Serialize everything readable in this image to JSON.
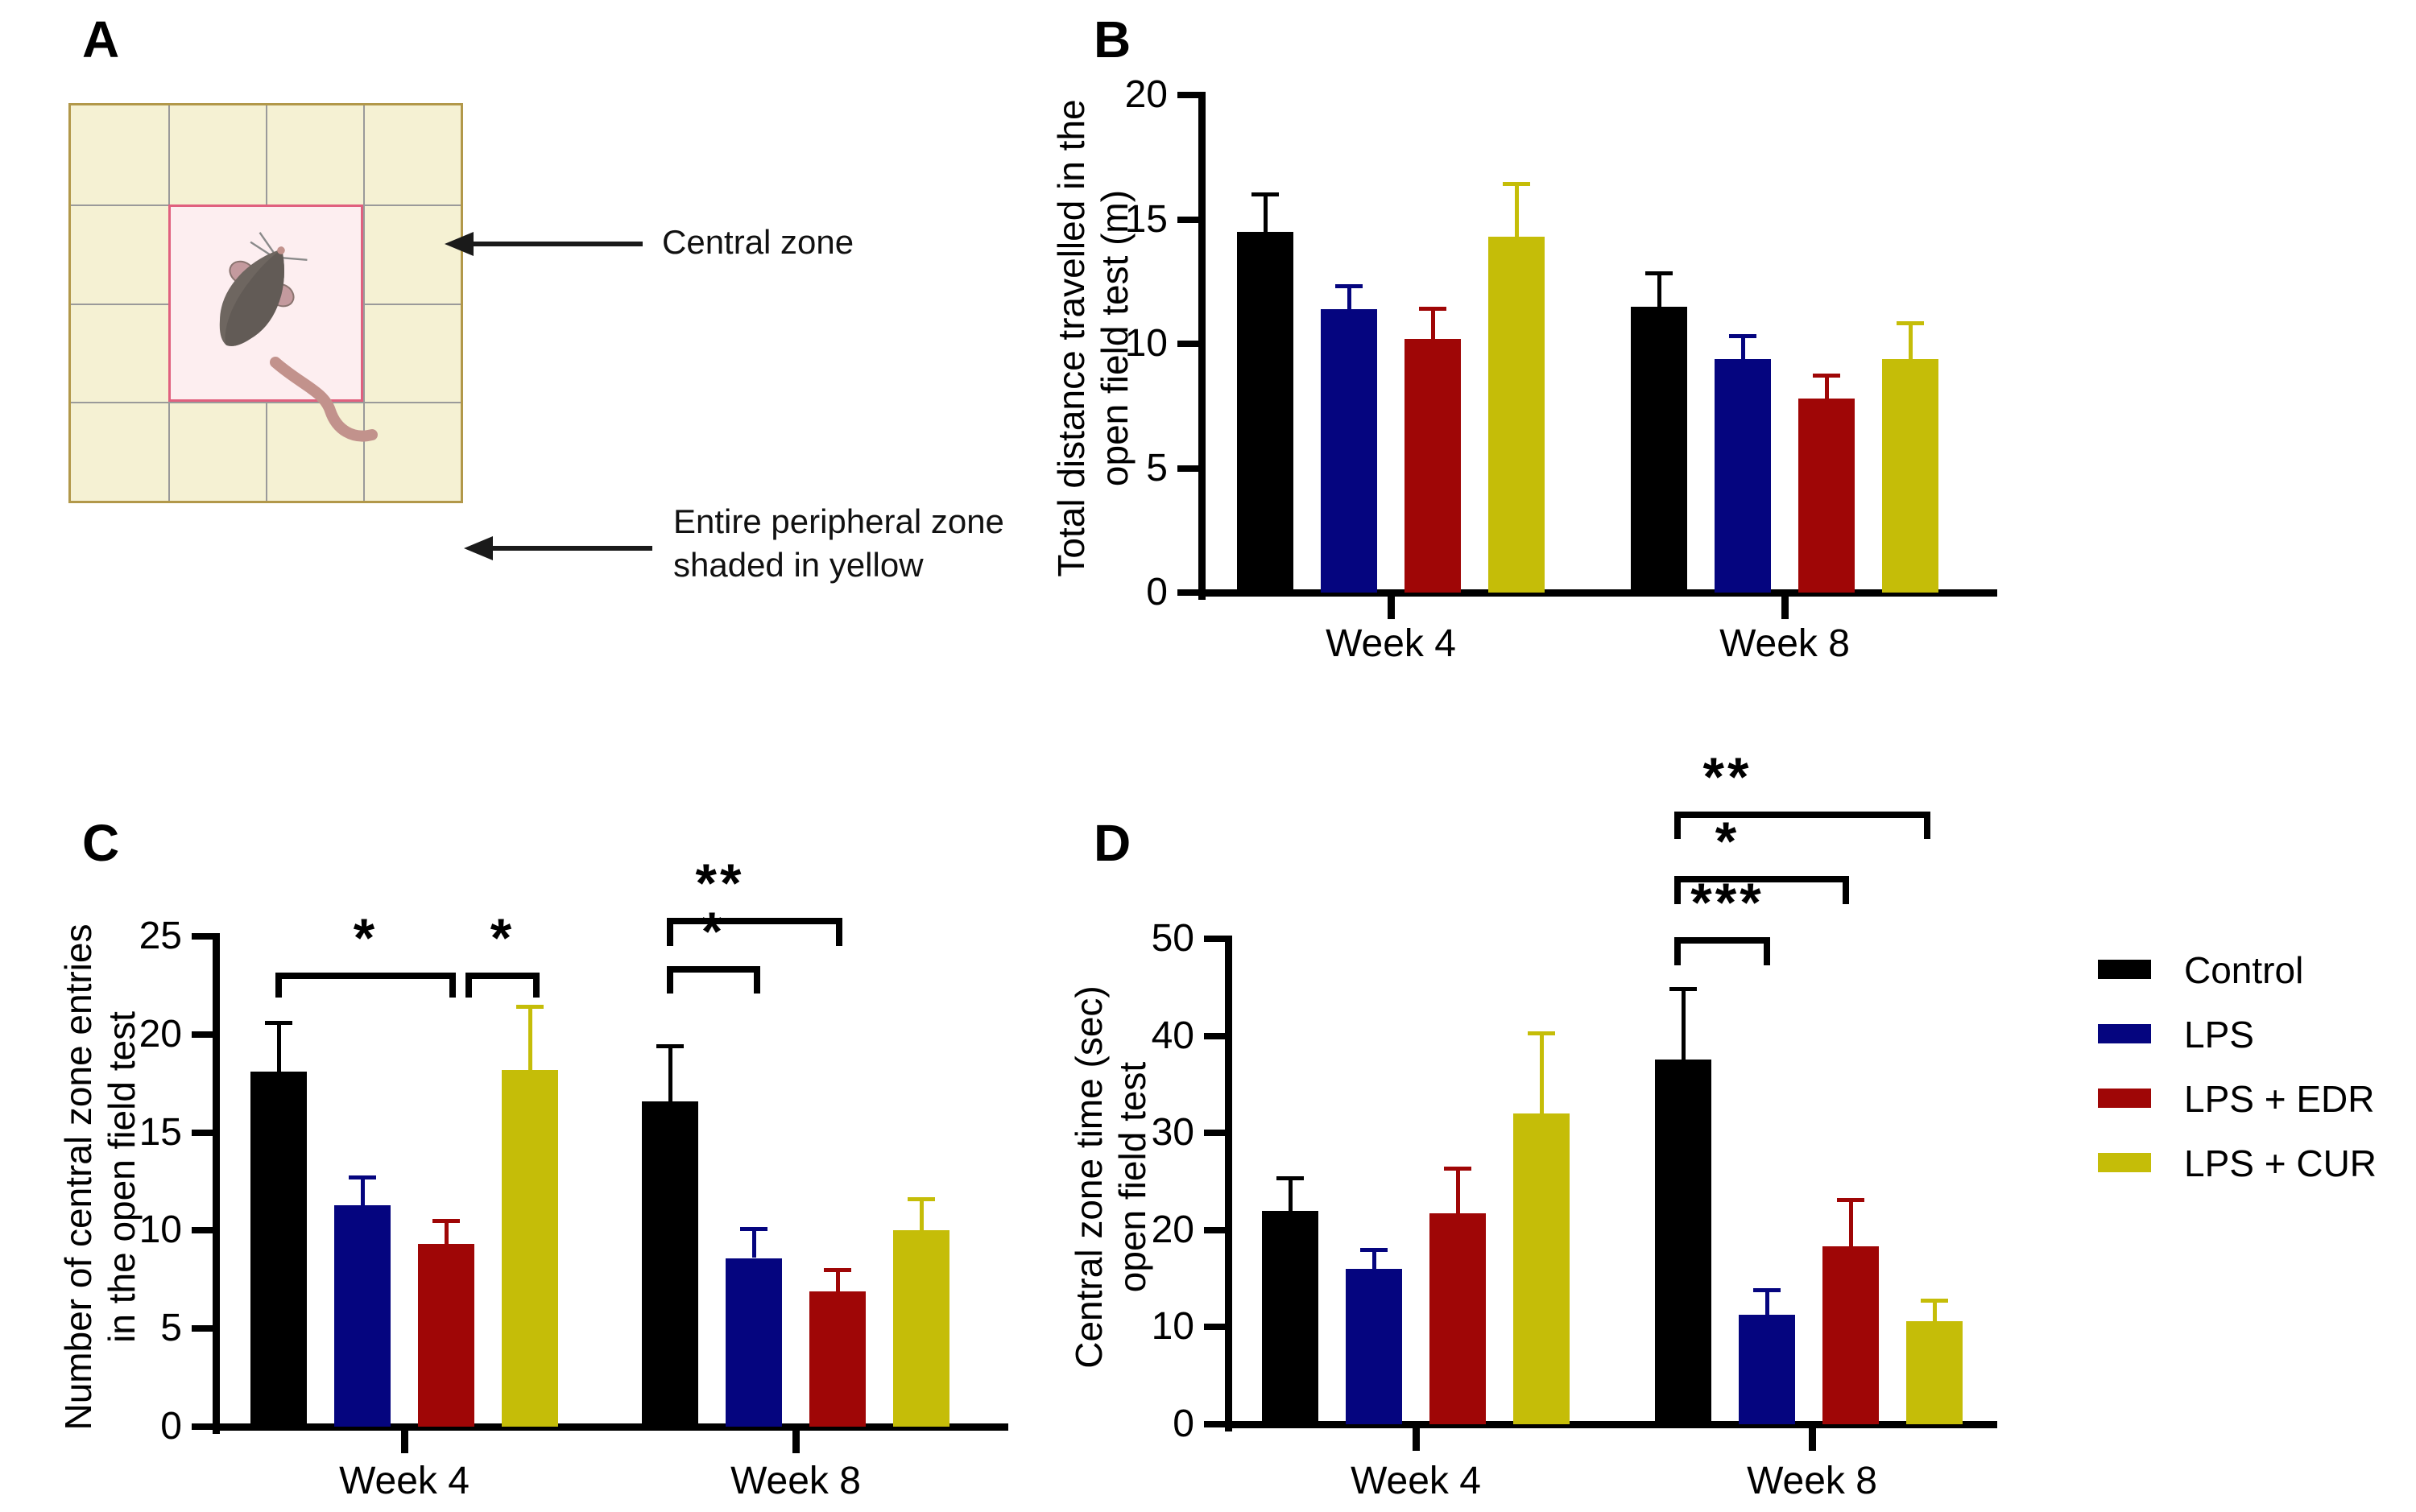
{
  "panel_labels": {
    "a": "A",
    "b": "B",
    "c": "C",
    "d": "D"
  },
  "panel_a": {
    "central_zone_label": "Central zone",
    "peripheral_label_lines": [
      "Entire peripheral zone",
      "shaded in yellow"
    ],
    "mouse_icon": "mouse-top-view",
    "colors": {
      "arena_fill": "#f5f1d3",
      "arena_border": "#b2984a",
      "grid_line": "#9a9a9a",
      "central_fill": "#fdeef0",
      "central_border": "#e0607e"
    }
  },
  "legend": {
    "items": [
      {
        "label": "Control",
        "color": "#000000"
      },
      {
        "label": "LPS",
        "color": "#05057f"
      },
      {
        "label": "LPS + EDR",
        "color": "#9f0606"
      },
      {
        "label": "LPS + CUR",
        "color": "#c5bd08"
      }
    ]
  },
  "chart_data": [
    {
      "type": "bar",
      "panel": "B",
      "ylabel_lines": [
        "Total distance travelled in the",
        "open field test (m)"
      ],
      "categories": [
        "Week 4",
        "Week 8"
      ],
      "ylim": [
        0,
        20
      ],
      "yticks": [
        0,
        5,
        10,
        15,
        20
      ],
      "legend_position": "none",
      "grid": false,
      "series": [
        {
          "name": "Control",
          "color": "#000000",
          "values": [
            14.5,
            11.5
          ],
          "errors": [
            1.6,
            1.4
          ]
        },
        {
          "name": "LPS",
          "color": "#05057f",
          "values": [
            11.4,
            9.4
          ],
          "errors": [
            1.0,
            1.0
          ]
        },
        {
          "name": "LPS + EDR",
          "color": "#9f0606",
          "values": [
            10.2,
            7.8
          ],
          "errors": [
            1.3,
            1.0
          ]
        },
        {
          "name": "LPS + CUR",
          "color": "#c5bd08",
          "values": [
            14.3,
            9.4
          ],
          "errors": [
            2.2,
            1.5
          ]
        }
      ],
      "sig_brackets": []
    },
    {
      "type": "bar",
      "panel": "C",
      "ylabel_lines": [
        "Number of central zone entries",
        "in the open field test"
      ],
      "categories": [
        "Week 4",
        "Week 8"
      ],
      "ylim": [
        0,
        25
      ],
      "yticks": [
        0,
        5,
        10,
        15,
        20,
        25
      ],
      "legend_position": "none",
      "grid": false,
      "series": [
        {
          "name": "Control",
          "color": "#000000",
          "values": [
            18.1,
            16.6
          ],
          "errors": [
            2.6,
            2.9
          ]
        },
        {
          "name": "LPS",
          "color": "#05057f",
          "values": [
            11.3,
            8.6
          ],
          "errors": [
            1.5,
            1.6
          ]
        },
        {
          "name": "LPS + EDR",
          "color": "#9f0606",
          "values": [
            9.3,
            6.9
          ],
          "errors": [
            1.3,
            1.2
          ]
        },
        {
          "name": "LPS + CUR",
          "color": "#c5bd08",
          "values": [
            18.2,
            10.0
          ],
          "errors": [
            3.3,
            1.7
          ]
        }
      ],
      "sig_brackets": [
        {
          "from_bar": 0,
          "to_bar": 2,
          "label": "*",
          "top": 23.0,
          "drop": 1.1
        },
        {
          "from_bar": 2,
          "to_bar": 3,
          "label": "*",
          "top": 23.0,
          "drop": 1.1
        },
        {
          "from_bar": 4,
          "to_bar": 5,
          "label": "*",
          "top": 23.3,
          "drop": 1.2
        },
        {
          "from_bar": 4,
          "to_bar": 6,
          "label": "**",
          "top": 25.8,
          "drop": 1.3
        }
      ]
    },
    {
      "type": "bar",
      "panel": "D",
      "ylabel_lines": [
        "Central zone time (sec)",
        "open field test"
      ],
      "categories": [
        "Week 4",
        "Week 8"
      ],
      "ylim": [
        0,
        50
      ],
      "yticks": [
        0,
        10,
        20,
        30,
        40,
        50
      ],
      "legend_position": "right",
      "grid": false,
      "series": [
        {
          "name": "Control",
          "color": "#000000",
          "values": [
            22.0,
            37.6
          ],
          "errors": [
            3.5,
            7.4
          ]
        },
        {
          "name": "LPS",
          "color": "#05057f",
          "values": [
            16.0,
            11.3
          ],
          "errors": [
            2.2,
            2.7
          ]
        },
        {
          "name": "LPS + EDR",
          "color": "#9f0606",
          "values": [
            21.7,
            18.3
          ],
          "errors": [
            4.8,
            5.0
          ]
        },
        {
          "name": "LPS + CUR",
          "color": "#c5bd08",
          "values": [
            32.0,
            10.6
          ],
          "errors": [
            8.5,
            2.3
          ]
        }
      ],
      "sig_brackets": [
        {
          "from_bar": 4,
          "to_bar": 5,
          "label": "***",
          "top": 49.8,
          "drop": 2.5
        },
        {
          "from_bar": 4,
          "to_bar": 6,
          "label": "*",
          "top": 56.1,
          "drop": 2.5
        },
        {
          "from_bar": 4,
          "to_bar": 7,
          "label": "**",
          "top": 62.8,
          "drop": 2.5
        }
      ]
    }
  ]
}
